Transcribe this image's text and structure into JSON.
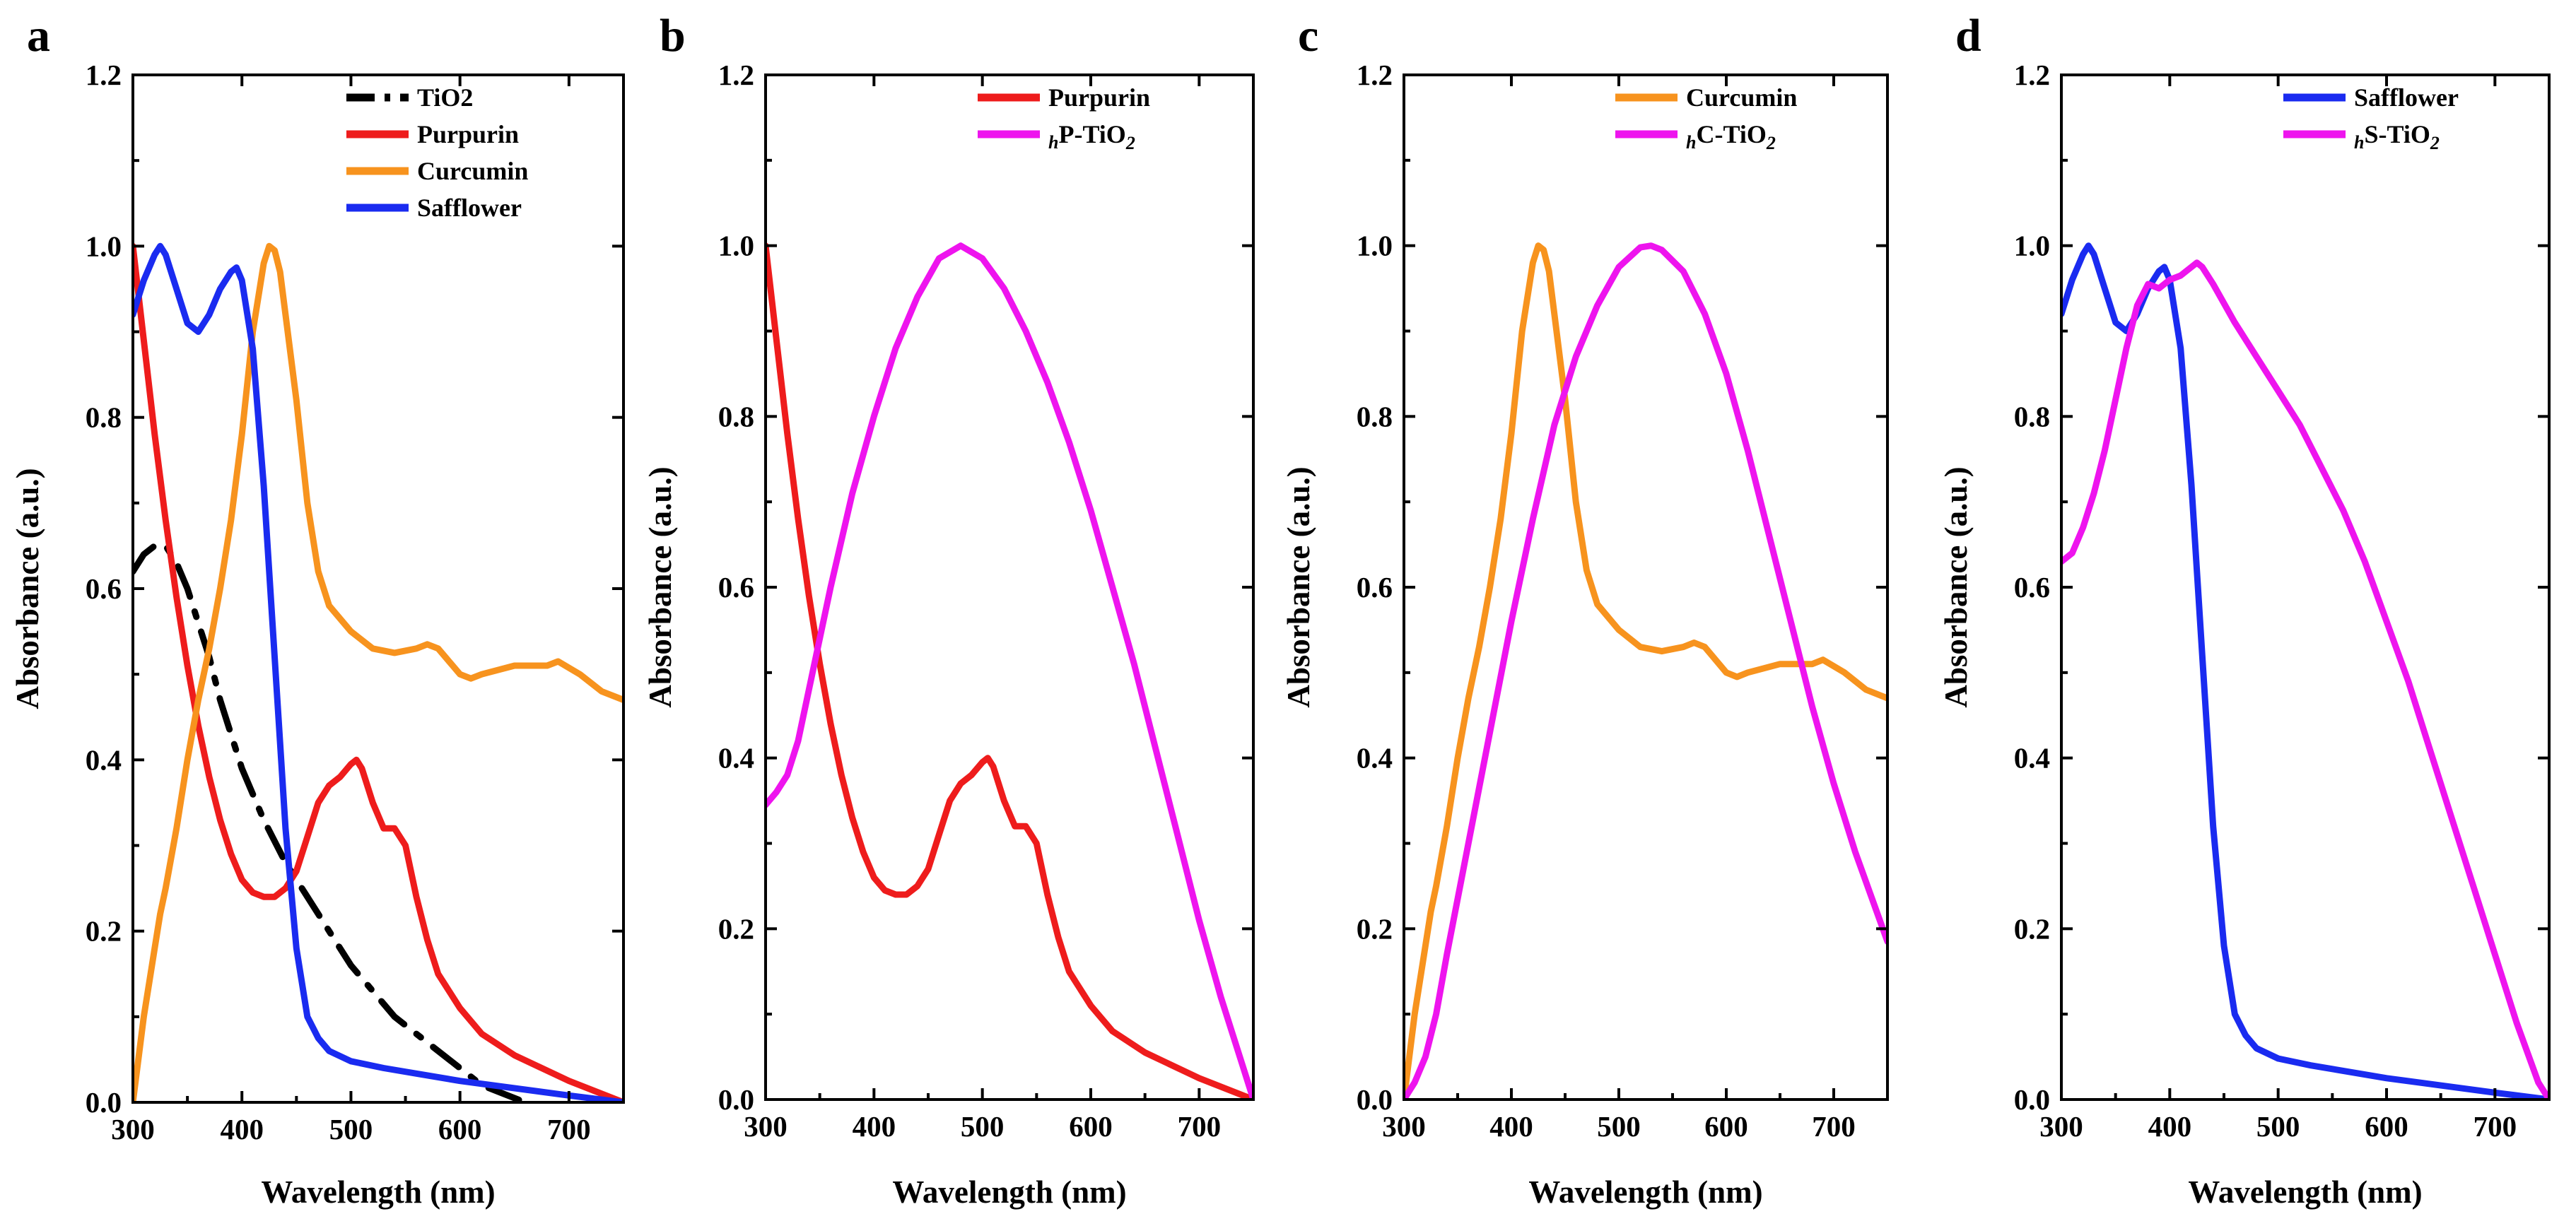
{
  "chart_data": [
    {
      "panel": "a",
      "type": "line",
      "xlabel": "Wavelength (nm)",
      "ylabel": "Absorbance (a.u.)",
      "xlim": [
        300,
        750
      ],
      "ylim": [
        0,
        1.2
      ],
      "xticks": [
        "300",
        "400",
        "500",
        "600",
        "700"
      ],
      "yticks": [
        "0.0",
        "0.2",
        "0.4",
        "0.6",
        "0.8",
        "1.0",
        "1.2"
      ],
      "legend_position": "top-right",
      "series": [
        {
          "name": "TiO2",
          "color": "#000000",
          "dash": "dashdot",
          "x": [
            300,
            310,
            320,
            330,
            340,
            350,
            360,
            370,
            380,
            390,
            400,
            420,
            440,
            460,
            480,
            500,
            520,
            540,
            560,
            580,
            600,
            620,
            640,
            660
          ],
          "y": [
            0.62,
            0.64,
            0.65,
            0.65,
            0.63,
            0.6,
            0.56,
            0.52,
            0.47,
            0.43,
            0.39,
            0.33,
            0.28,
            0.24,
            0.2,
            0.16,
            0.13,
            0.1,
            0.08,
            0.06,
            0.04,
            0.02,
            0.01,
            0.0
          ]
        },
        {
          "name": "Purpurin",
          "color": "#ee1c1c",
          "dash": "solid",
          "x": [
            300,
            310,
            320,
            330,
            340,
            350,
            360,
            370,
            380,
            390,
            400,
            410,
            420,
            430,
            440,
            450,
            460,
            470,
            480,
            490,
            500,
            505,
            510,
            520,
            530,
            540,
            550,
            560,
            570,
            580,
            600,
            620,
            650,
            700,
            750
          ],
          "y": [
            1.0,
            0.89,
            0.78,
            0.68,
            0.59,
            0.51,
            0.44,
            0.38,
            0.33,
            0.29,
            0.26,
            0.245,
            0.24,
            0.24,
            0.25,
            0.27,
            0.31,
            0.35,
            0.37,
            0.38,
            0.395,
            0.4,
            0.39,
            0.35,
            0.32,
            0.32,
            0.3,
            0.24,
            0.19,
            0.15,
            0.11,
            0.08,
            0.055,
            0.025,
            0.0
          ]
        },
        {
          "name": "Curcumin",
          "color": "#f7931e",
          "dash": "solid",
          "x": [
            300,
            305,
            310,
            315,
            320,
            325,
            330,
            340,
            350,
            360,
            370,
            380,
            390,
            400,
            410,
            420,
            425,
            430,
            435,
            440,
            450,
            460,
            470,
            480,
            500,
            520,
            540,
            560,
            570,
            580,
            600,
            610,
            620,
            650,
            680,
            690,
            710,
            730,
            750
          ],
          "y": [
            0.0,
            0.05,
            0.1,
            0.14,
            0.18,
            0.22,
            0.25,
            0.32,
            0.4,
            0.47,
            0.53,
            0.6,
            0.68,
            0.78,
            0.9,
            0.98,
            1.0,
            0.995,
            0.97,
            0.92,
            0.82,
            0.7,
            0.62,
            0.58,
            0.55,
            0.53,
            0.525,
            0.53,
            0.535,
            0.53,
            0.5,
            0.495,
            0.5,
            0.51,
            0.51,
            0.515,
            0.5,
            0.48,
            0.47
          ]
        },
        {
          "name": "Safflower",
          "color": "#1a2bf0",
          "dash": "solid",
          "x": [
            300,
            310,
            320,
            325,
            330,
            340,
            350,
            360,
            370,
            380,
            390,
            395,
            400,
            410,
            420,
            430,
            440,
            450,
            460,
            470,
            480,
            500,
            530,
            600,
            700,
            750
          ],
          "y": [
            0.92,
            0.96,
            0.99,
            1.0,
            0.99,
            0.95,
            0.91,
            0.9,
            0.92,
            0.95,
            0.97,
            0.975,
            0.96,
            0.88,
            0.72,
            0.52,
            0.32,
            0.18,
            0.1,
            0.075,
            0.06,
            0.048,
            0.04,
            0.025,
            0.008,
            0.0
          ]
        }
      ]
    },
    {
      "panel": "b",
      "type": "line",
      "xlabel": "Wavelength (nm)",
      "ylabel": "Absorbance (a.u.)",
      "xlim": [
        300,
        750
      ],
      "ylim": [
        0,
        1.2
      ],
      "xticks": [
        "300",
        "400",
        "500",
        "600",
        "700"
      ],
      "yticks": [
        "0.0",
        "0.2",
        "0.4",
        "0.6",
        "0.8",
        "1.0",
        "1.2"
      ],
      "legend_position": "top-right",
      "series": [
        {
          "name": "Purpurin",
          "color": "#ee1c1c",
          "dash": "solid",
          "x": [
            300,
            310,
            320,
            330,
            340,
            350,
            360,
            370,
            380,
            390,
            400,
            410,
            420,
            430,
            440,
            450,
            460,
            470,
            480,
            490,
            500,
            505,
            510,
            520,
            530,
            540,
            550,
            560,
            570,
            580,
            600,
            620,
            650,
            700,
            750
          ],
          "y": [
            1.0,
            0.89,
            0.78,
            0.68,
            0.59,
            0.51,
            0.44,
            0.38,
            0.33,
            0.29,
            0.26,
            0.245,
            0.24,
            0.24,
            0.25,
            0.27,
            0.31,
            0.35,
            0.37,
            0.38,
            0.395,
            0.4,
            0.39,
            0.35,
            0.32,
            0.32,
            0.3,
            0.24,
            0.19,
            0.15,
            0.11,
            0.08,
            0.055,
            0.025,
            0.0
          ]
        },
        {
          "name": "P-TiO",
          "prefix": "h",
          "sub": "2",
          "color": "#ee14ee",
          "dash": "solid",
          "x": [
            300,
            310,
            320,
            330,
            340,
            360,
            380,
            400,
            420,
            440,
            460,
            480,
            500,
            520,
            540,
            560,
            580,
            600,
            620,
            640,
            660,
            680,
            700,
            720,
            740,
            750
          ],
          "y": [
            0.345,
            0.36,
            0.38,
            0.42,
            0.48,
            0.6,
            0.71,
            0.8,
            0.88,
            0.94,
            0.985,
            1.0,
            0.985,
            0.95,
            0.9,
            0.84,
            0.77,
            0.69,
            0.6,
            0.51,
            0.41,
            0.31,
            0.21,
            0.12,
            0.04,
            0.0
          ]
        }
      ]
    },
    {
      "panel": "c",
      "type": "line",
      "xlabel": "Wavelength (nm)",
      "ylabel": "Absorbance (a.u.)",
      "xlim": [
        300,
        750
      ],
      "ylim": [
        0,
        1.2
      ],
      "xticks": [
        "300",
        "400",
        "500",
        "600",
        "700"
      ],
      "yticks": [
        "0.0",
        "0.2",
        "0.4",
        "0.6",
        "0.8",
        "1.0",
        "1.2"
      ],
      "legend_position": "top-right",
      "series": [
        {
          "name": "Curcumin",
          "color": "#f7931e",
          "dash": "solid",
          "x": [
            300,
            305,
            310,
            315,
            320,
            325,
            330,
            340,
            350,
            360,
            370,
            380,
            390,
            400,
            410,
            420,
            425,
            430,
            435,
            440,
            450,
            460,
            470,
            480,
            500,
            520,
            540,
            560,
            570,
            580,
            600,
            610,
            620,
            650,
            680,
            690,
            710,
            730,
            750
          ],
          "y": [
            0.0,
            0.05,
            0.1,
            0.14,
            0.18,
            0.22,
            0.25,
            0.32,
            0.4,
            0.47,
            0.53,
            0.6,
            0.68,
            0.78,
            0.9,
            0.98,
            1.0,
            0.995,
            0.97,
            0.92,
            0.82,
            0.7,
            0.62,
            0.58,
            0.55,
            0.53,
            0.525,
            0.53,
            0.535,
            0.53,
            0.5,
            0.495,
            0.5,
            0.51,
            0.51,
            0.515,
            0.5,
            0.48,
            0.47
          ]
        },
        {
          "name": "C-TiO",
          "prefix": "h",
          "sub": "2",
          "color": "#ee14ee",
          "dash": "solid",
          "x": [
            300,
            310,
            320,
            330,
            340,
            360,
            380,
            400,
            420,
            440,
            460,
            480,
            500,
            520,
            530,
            540,
            560,
            580,
            600,
            620,
            640,
            660,
            680,
            700,
            720,
            740,
            750
          ],
          "y": [
            0.0,
            0.02,
            0.05,
            0.1,
            0.17,
            0.3,
            0.43,
            0.56,
            0.68,
            0.79,
            0.87,
            0.93,
            0.975,
            0.998,
            1.0,
            0.995,
            0.97,
            0.92,
            0.85,
            0.76,
            0.66,
            0.56,
            0.46,
            0.37,
            0.29,
            0.22,
            0.185
          ]
        }
      ]
    },
    {
      "panel": "d",
      "type": "line",
      "xlabel": "Wavelength (nm)",
      "ylabel": "Absorbance (a.u.)",
      "xlim": [
        300,
        750
      ],
      "ylim": [
        0,
        1.2
      ],
      "xticks": [
        "300",
        "400",
        "500",
        "600",
        "700"
      ],
      "yticks": [
        "0.0",
        "0.2",
        "0.4",
        "0.6",
        "0.8",
        "1.0",
        "1.2"
      ],
      "legend_position": "top-right",
      "series": [
        {
          "name": "Safflower",
          "color": "#1a2bf0",
          "dash": "solid",
          "x": [
            300,
            310,
            320,
            325,
            330,
            340,
            350,
            360,
            370,
            380,
            390,
            395,
            400,
            410,
            420,
            430,
            440,
            450,
            460,
            470,
            480,
            500,
            530,
            600,
            700,
            750
          ],
          "y": [
            0.92,
            0.96,
            0.99,
            1.0,
            0.99,
            0.95,
            0.91,
            0.9,
            0.92,
            0.95,
            0.97,
            0.975,
            0.96,
            0.88,
            0.72,
            0.52,
            0.32,
            0.18,
            0.1,
            0.075,
            0.06,
            0.048,
            0.04,
            0.025,
            0.008,
            0.0
          ]
        },
        {
          "name": "S-TiO",
          "prefix": "h",
          "sub": "2",
          "color": "#ee14ee",
          "dash": "solid",
          "x": [
            300,
            310,
            320,
            330,
            340,
            350,
            360,
            370,
            380,
            390,
            400,
            410,
            420,
            425,
            430,
            440,
            460,
            480,
            500,
            520,
            540,
            560,
            580,
            600,
            620,
            640,
            660,
            680,
            700,
            720,
            740,
            750
          ],
          "y": [
            0.63,
            0.64,
            0.67,
            0.71,
            0.76,
            0.82,
            0.88,
            0.93,
            0.955,
            0.95,
            0.96,
            0.965,
            0.975,
            0.98,
            0.975,
            0.955,
            0.91,
            0.87,
            0.83,
            0.79,
            0.74,
            0.69,
            0.63,
            0.56,
            0.49,
            0.41,
            0.33,
            0.25,
            0.17,
            0.09,
            0.02,
            0.0
          ]
        }
      ]
    }
  ]
}
